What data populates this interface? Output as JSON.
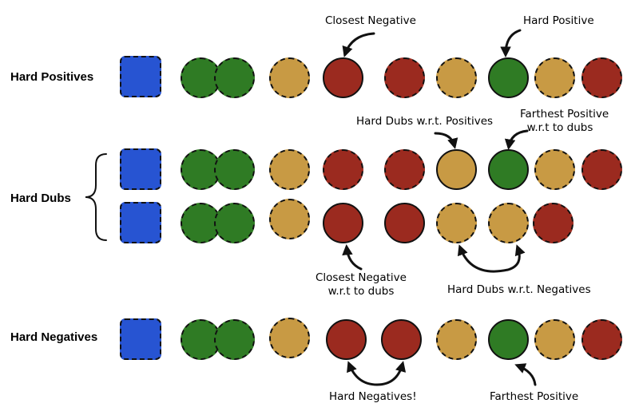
{
  "row_labels": {
    "hard_positives": "Hard Positives",
    "hard_dubs": "Hard Dubs",
    "hard_negatives": "Hard Negatives"
  },
  "annotations": {
    "closest_negative": "Closest Negative",
    "hard_positive": "Hard Positive",
    "hard_dubs_wrt_positives": "Hard Dubs w.r.t. Positives",
    "farthest_positive_wrt_dubs_line1": "Farthest Positive",
    "farthest_positive_wrt_dubs_line2": "w.r.t to dubs",
    "closest_negative_wrt_dubs_line1": "Closest Negative",
    "closest_negative_wrt_dubs_line2": "w.r.t to dubs",
    "hard_dubs_wrt_negatives": "Hard Dubs w.r.t. Negatives",
    "hard_negatives_bang": "Hard Negatives!",
    "farthest_positive": "Farthest Positive"
  },
  "colors": {
    "anchor_blue": "#2754d2",
    "positive_green": "#2f7b24",
    "dub_tan": "#c89a44",
    "negative_red": "#9b2a1f"
  },
  "rows": [
    {
      "name": "hard-positives",
      "items": [
        "anchor",
        "positive",
        "positive",
        "dub",
        "negative",
        "negative",
        "dub",
        "positive",
        "dub",
        "negative"
      ]
    },
    {
      "name": "hard-dubs-1",
      "items": [
        "anchor",
        "positive",
        "positive",
        "dub",
        "negative",
        "negative",
        "dub",
        "positive",
        "dub",
        "negative"
      ]
    },
    {
      "name": "hard-dubs-2",
      "items": [
        "anchor",
        "positive",
        "positive",
        "dub",
        "negative",
        "negative",
        "dub",
        "dub",
        "negative"
      ]
    },
    {
      "name": "hard-negatives",
      "items": [
        "anchor",
        "positive",
        "positive",
        "dub",
        "negative",
        "negative",
        "dub",
        "positive",
        "dub",
        "negative"
      ]
    }
  ]
}
